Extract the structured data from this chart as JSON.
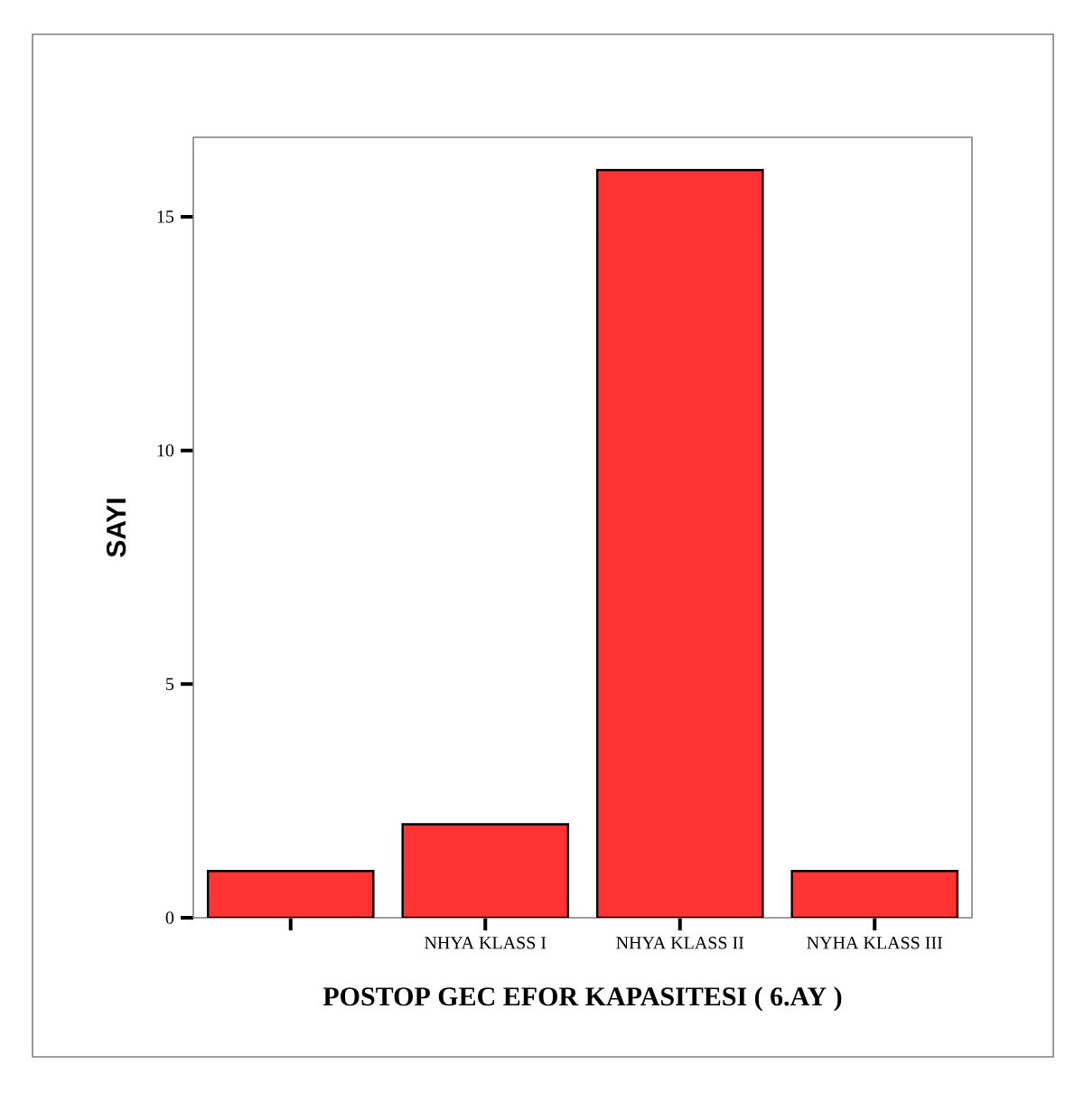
{
  "chart_data": {
    "type": "bar",
    "categories": [
      null,
      "NHYA KLASS I",
      "NHYA KLASS II",
      "NYHA KLASS III"
    ],
    "values": [
      1,
      2,
      16,
      1
    ],
    "color": "#ff3333",
    "xlabel": "POSTOP GEC EFOR KAPASITESI ( 6.AY )",
    "ylabel": "SAYI",
    "ylim": [
      0,
      16.7
    ],
    "yticks": [
      0,
      5,
      10,
      15
    ]
  }
}
